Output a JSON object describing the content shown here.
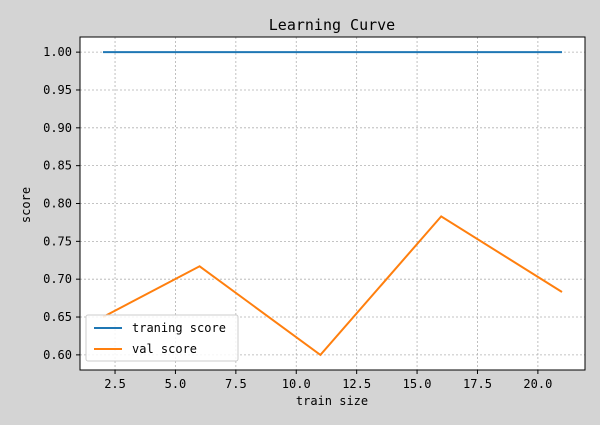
{
  "chart_data": {
    "type": "line",
    "title": "Learning Curve",
    "xlabel": "train size",
    "ylabel": "score",
    "xlim": [
      1.05,
      21.95
    ],
    "ylim": [
      0.58,
      1.02
    ],
    "xticks": [
      2.5,
      5.0,
      7.5,
      10.0,
      12.5,
      15.0,
      17.5,
      20.0
    ],
    "xtick_labels": [
      "2.5",
      "5.0",
      "7.5",
      "10.0",
      "12.5",
      "15.0",
      "17.5",
      "20.0"
    ],
    "yticks": [
      0.6,
      0.65,
      0.7,
      0.75,
      0.8,
      0.85,
      0.9,
      0.95,
      1.0
    ],
    "ytick_labels": [
      "0.60",
      "0.65",
      "0.70",
      "0.75",
      "0.80",
      "0.85",
      "0.90",
      "0.95",
      "1.00"
    ],
    "grid": true,
    "legend_position": "lower-left",
    "x": [
      2,
      6,
      11,
      16,
      21
    ],
    "series": [
      {
        "name": "traning score",
        "color": "#1f77b4",
        "values": [
          1.0,
          1.0,
          1.0,
          1.0,
          1.0
        ]
      },
      {
        "name": "val score",
        "color": "#ff7f0e",
        "values": [
          0.65,
          0.717,
          0.6,
          0.783,
          0.683
        ]
      }
    ]
  }
}
